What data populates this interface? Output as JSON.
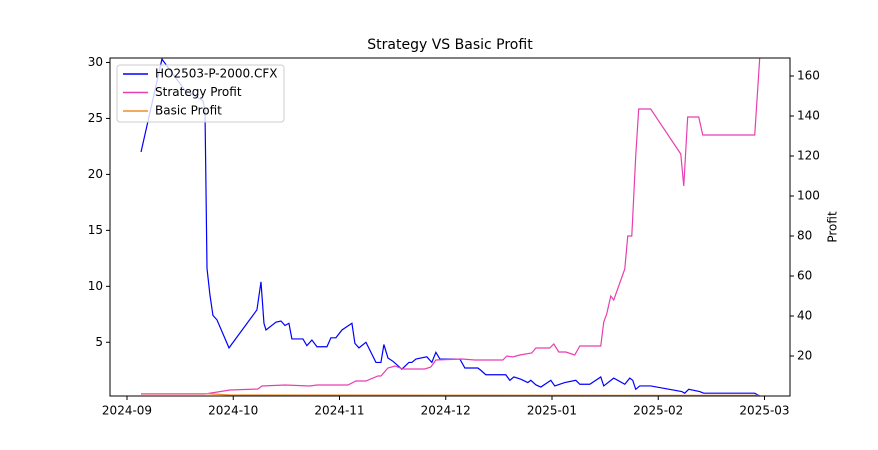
{
  "chart_data": {
    "type": "line",
    "title": "Strategy VS Basic Profit",
    "y2label": "Profit",
    "xlim": [
      -0.16,
      6.24
    ],
    "xticks": [
      {
        "value": 0,
        "label": "2024-09"
      },
      {
        "value": 1,
        "label": "2024-10"
      },
      {
        "value": 2,
        "label": "2024-11"
      },
      {
        "value": 3,
        "label": "2024-12"
      },
      {
        "value": 4,
        "label": "2025-01"
      },
      {
        "value": 5,
        "label": "2025-02"
      },
      {
        "value": 6,
        "label": "2025-03"
      }
    ],
    "ylim": [
      0.2,
      30.4
    ],
    "yticks": [
      5,
      10,
      15,
      20,
      25,
      30
    ],
    "y2lim": [
      0,
      169
    ],
    "y2ticks": [
      20,
      40,
      60,
      80,
      100,
      120,
      140,
      160
    ],
    "legend": "upper left",
    "series": [
      {
        "name": "HO2503-P-2000.CFX",
        "color": "#0000ff",
        "axis": "y",
        "x": [
          0.132,
          0.329,
          0.546,
          0.715,
          0.734,
          0.753,
          0.781,
          0.809,
          0.847,
          0.96,
          1.223,
          1.261,
          1.289,
          1.308,
          1.402,
          1.449,
          1.487,
          1.524,
          1.552,
          1.656,
          1.693,
          1.74,
          1.788,
          1.882,
          1.919,
          1.966,
          2.023,
          2.117,
          2.145,
          2.183,
          2.249,
          2.343,
          2.39,
          2.418,
          2.456,
          2.503,
          2.587,
          2.653,
          2.681,
          2.719,
          2.822,
          2.869,
          2.907,
          2.945,
          3.133,
          3.18,
          3.302,
          3.33,
          3.377,
          3.565,
          3.603,
          3.641,
          3.706,
          3.772,
          3.801,
          3.848,
          3.895,
          3.989,
          4.026,
          4.12,
          4.224,
          4.262,
          4.356,
          4.459,
          4.487,
          4.581,
          4.685,
          4.732,
          4.76,
          4.788,
          4.826,
          4.929,
          5.221,
          5.249,
          5.287,
          5.39,
          5.428,
          5.908,
          5.955
        ],
        "values": [
          22,
          30.3,
          27.5,
          26.6,
          25.7,
          11.6,
          9.2,
          7.4,
          7,
          4.5,
          7.9,
          10.4,
          6.7,
          6.1,
          6.8,
          6.9,
          6.5,
          6.7,
          5.3,
          5.3,
          4.7,
          5.2,
          4.6,
          4.6,
          5.4,
          5.4,
          6.1,
          6.7,
          4.9,
          4.5,
          5,
          3.2,
          3.2,
          4.8,
          3.6,
          3.3,
          2.6,
          3.2,
          3.2,
          3.5,
          3.7,
          3.2,
          4.1,
          3.5,
          3.5,
          2.7,
          2.7,
          2.5,
          2.1,
          2.1,
          1.6,
          1.9,
          1.7,
          1.4,
          1.6,
          1.2,
          1,
          1.6,
          1.1,
          1.4,
          1.6,
          1.25,
          1.25,
          1.9,
          1.1,
          1.8,
          1.25,
          1.8,
          1.6,
          0.8,
          1.1,
          1.1,
          0.6,
          0.45,
          0.8,
          0.6,
          0.45,
          0.45,
          0.2
        ]
      },
      {
        "name": "Strategy Profit",
        "color": "#e83fb0",
        "axis": "y2",
        "x": [
          0.132,
          0.734,
          0.969,
          1.232,
          1.27,
          1.487,
          1.722,
          1.788,
          2.079,
          2.154,
          2.249,
          2.361,
          2.39,
          2.456,
          2.521,
          2.597,
          2.672,
          2.803,
          2.86,
          2.907,
          3.151,
          3.274,
          3.537,
          3.575,
          3.631,
          3.697,
          3.81,
          3.848,
          3.979,
          4.017,
          4.064,
          4.13,
          4.214,
          4.262,
          4.459,
          4.487,
          4.515,
          4.553,
          4.581,
          4.685,
          4.713,
          4.751,
          4.788,
          4.816,
          4.929,
          5.212,
          5.24,
          5.277,
          5.381,
          5.419,
          5.908,
          5.955
        ],
        "values": [
          1,
          1,
          3,
          3.5,
          5,
          5.5,
          5,
          5.5,
          5.5,
          7.5,
          7.5,
          10,
          10,
          14,
          15,
          13.5,
          13.5,
          13.5,
          14.5,
          18,
          18.5,
          18,
          18,
          20,
          19.5,
          20.5,
          21.5,
          24,
          24,
          26,
          22,
          22,
          20.5,
          25,
          25,
          37,
          41,
          50,
          48,
          63.5,
          80,
          80,
          120,
          143.5,
          143.5,
          121,
          105,
          139.5,
          139.5,
          130.5,
          130.5,
          169
        ]
      },
      {
        "name": "Basic Profit",
        "color": "#f28e2b",
        "axis": "y2",
        "x": [
          0.132,
          0.734,
          0.969,
          5.955
        ],
        "values": [
          1.2,
          1.2,
          0.5,
          0.3
        ]
      }
    ]
  }
}
